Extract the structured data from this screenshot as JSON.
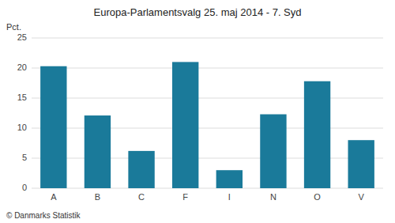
{
  "chart_data": {
    "type": "bar",
    "title": "Europa-Parlamentsvalg 25. maj 2014 - 7. Syd",
    "y_label": "Pct.",
    "categories": [
      "A",
      "B",
      "C",
      "F",
      "I",
      "N",
      "O",
      "V"
    ],
    "values": [
      20.3,
      12.1,
      6.2,
      21.0,
      3.0,
      12.3,
      17.8,
      8.0
    ],
    "color": "#1a7a9a",
    "ylim": [
      0,
      25
    ],
    "yticks": [
      0,
      5,
      10,
      15,
      20,
      25
    ],
    "grid": true,
    "annotations": [
      "© Danmarks Statistik"
    ]
  }
}
